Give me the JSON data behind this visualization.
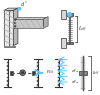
{
  "cyan": "#55ccff",
  "dark": "#333333",
  "gray": "#888888",
  "lgray": "#cccccc",
  "mgray": "#aaaaaa",
  "dgray": "#555555",
  "white": "#ffffff",
  "black": "#111111"
}
